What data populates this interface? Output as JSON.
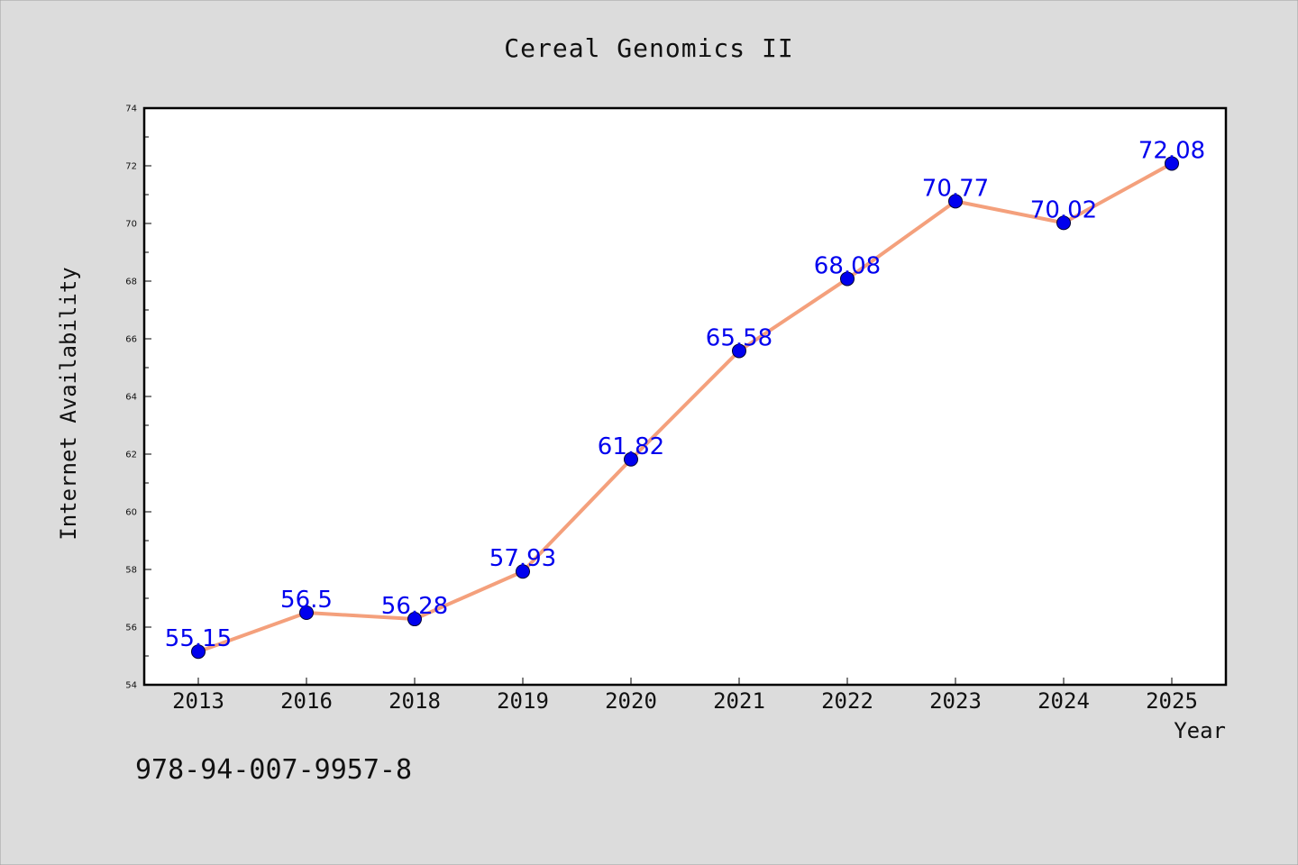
{
  "chart_data": {
    "type": "line",
    "title": "Cereal Genomics II",
    "xlabel": "Year",
    "ylabel": "Internet Availability",
    "categories": [
      "2013",
      "2016",
      "2018",
      "2019",
      "2020",
      "2021",
      "2022",
      "2023",
      "2024",
      "2025"
    ],
    "series": [
      {
        "values": [
          55.15,
          56.5,
          56.28,
          57.93,
          61.82,
          65.58,
          68.08,
          70.77,
          70.02,
          72.08
        ],
        "data_labels": [
          "55.15",
          "56.5",
          "56.28",
          "57.93",
          "61.82",
          "65.58",
          "68.08",
          "70.77",
          "70.02",
          "72.08"
        ],
        "line_color": "#f4a07c",
        "marker_color": "#0000ee",
        "label_color": "#0000ee"
      }
    ],
    "ylim": [
      54,
      74
    ],
    "yticks": [
      "54",
      "56",
      "58",
      "60",
      "62",
      "64",
      "66",
      "68",
      "70",
      "72",
      "74"
    ],
    "grid": false,
    "legend": "none"
  },
  "footer": {
    "isbn": "978-94-007-9957-8"
  },
  "colors": {
    "background": "#dcdcdc",
    "plot_background": "#ffffff",
    "axis": "#000000"
  }
}
